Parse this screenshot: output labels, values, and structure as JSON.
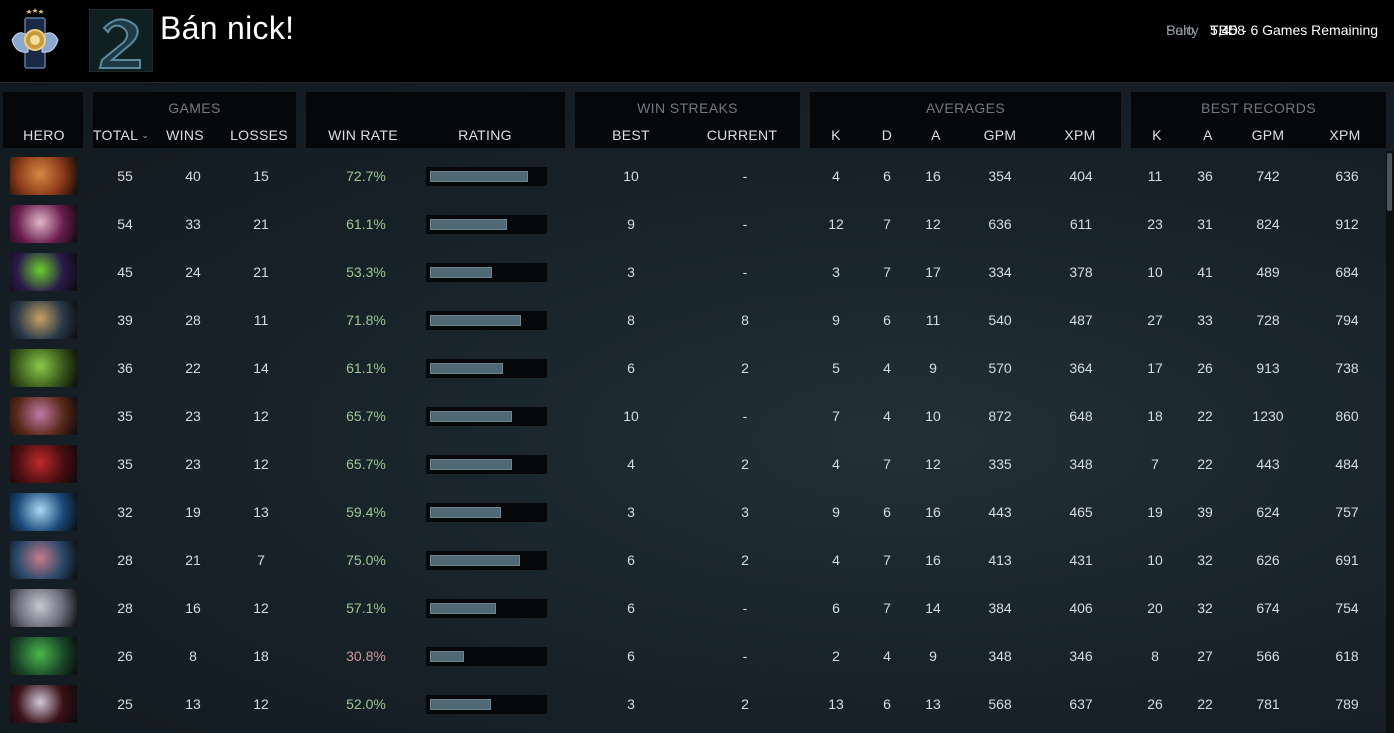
{
  "player": {
    "name": "Bán nick!",
    "mmr": [
      {
        "label": "Solo",
        "value": "5,458"
      },
      {
        "label": "Party",
        "value": "TBD - 6 Games Remaining"
      }
    ]
  },
  "table": {
    "groups": {
      "games": "GAMES",
      "win_streaks": "WIN STREAKS",
      "averages": "AVERAGES",
      "best_records": "BEST RECORDS"
    },
    "columns": {
      "hero": "HERO",
      "total": "TOTAL",
      "wins": "WINS",
      "losses": "LOSSES",
      "win_rate": "WIN RATE",
      "rating": "RATING",
      "best": "BEST",
      "current": "CURRENT",
      "avg_k": "K",
      "avg_d": "D",
      "avg_a": "A",
      "avg_gpm": "GPM",
      "avg_xpm": "XPM",
      "rec_k": "K",
      "rec_a": "A",
      "rec_gpm": "GPM",
      "rec_xpm": "XPM"
    },
    "rows": [
      {
        "total": "55",
        "wins": "40",
        "losses": "15",
        "win_rate": "72.7%",
        "rating": 0.85,
        "best": "10",
        "current": "-",
        "k": "4",
        "d": "6",
        "a": "16",
        "gpm": "354",
        "xpm": "404",
        "rk": "11",
        "ra": "36",
        "rgpm": "742",
        "rxpm": "636",
        "hero_icon": "hero-earthshaker",
        "hero_colors": [
          "#8a3a18",
          "#d48a44"
        ]
      },
      {
        "total": "54",
        "wins": "33",
        "losses": "21",
        "win_rate": "61.1%",
        "rating": 0.66,
        "best": "9",
        "current": "-",
        "k": "12",
        "d": "7",
        "a": "12",
        "gpm": "636",
        "xpm": "611",
        "rk": "23",
        "ra": "31",
        "rgpm": "824",
        "rxpm": "912",
        "hero_icon": "hero-invoker",
        "hero_colors": [
          "#6a1d4e",
          "#e0b8c8"
        ]
      },
      {
        "total": "45",
        "wins": "24",
        "losses": "21",
        "win_rate": "53.3%",
        "rating": 0.53,
        "best": "3",
        "current": "-",
        "k": "3",
        "d": "7",
        "a": "17",
        "gpm": "334",
        "xpm": "378",
        "rk": "10",
        "ra": "41",
        "rgpm": "489",
        "rxpm": "684",
        "hero_icon": "hero-void-spirit",
        "hero_colors": [
          "#2a1b4a",
          "#6ad02a"
        ]
      },
      {
        "total": "39",
        "wins": "28",
        "losses": "11",
        "win_rate": "71.8%",
        "rating": 0.79,
        "best": "8",
        "current": "8",
        "k": "9",
        "d": "6",
        "a": "11",
        "gpm": "540",
        "xpm": "487",
        "rk": "27",
        "ra": "33",
        "rgpm": "728",
        "rxpm": "794",
        "hero_icon": "hero-tinker",
        "hero_colors": [
          "#2a3a4a",
          "#c8a060"
        ]
      },
      {
        "total": "36",
        "wins": "22",
        "losses": "14",
        "win_rate": "61.1%",
        "rating": 0.63,
        "best": "6",
        "current": "2",
        "k": "5",
        "d": "4",
        "a": "9",
        "gpm": "570",
        "xpm": "364",
        "rk": "17",
        "ra": "26",
        "rgpm": "913",
        "rxpm": "738",
        "hero_icon": "hero-windranger",
        "hero_colors": [
          "#3a5a1a",
          "#8ac84a"
        ]
      },
      {
        "total": "35",
        "wins": "23",
        "losses": "12",
        "win_rate": "65.7%",
        "rating": 0.71,
        "best": "10",
        "current": "-",
        "k": "7",
        "d": "4",
        "a": "10",
        "gpm": "872",
        "xpm": "648",
        "rk": "18",
        "ra": "22",
        "rgpm": "1230",
        "rxpm": "860",
        "hero_icon": "hero-alchemist",
        "hero_colors": [
          "#5a2a1a",
          "#c07aa8"
        ]
      },
      {
        "total": "35",
        "wins": "23",
        "losses": "12",
        "win_rate": "65.7%",
        "rating": 0.71,
        "best": "4",
        "current": "2",
        "k": "4",
        "d": "7",
        "a": "12",
        "gpm": "335",
        "xpm": "348",
        "rk": "7",
        "ra": "22",
        "rgpm": "443",
        "rxpm": "484",
        "hero_icon": "hero-shadow-demon",
        "hero_colors": [
          "#4a0e12",
          "#c02a2a"
        ]
      },
      {
        "total": "32",
        "wins": "19",
        "losses": "13",
        "win_rate": "59.4%",
        "rating": 0.61,
        "best": "3",
        "current": "3",
        "k": "9",
        "d": "6",
        "a": "16",
        "gpm": "443",
        "xpm": "465",
        "rk": "19",
        "ra": "39",
        "rgpm": "624",
        "rxpm": "757",
        "hero_icon": "hero-zeus",
        "hero_colors": [
          "#1a4a7a",
          "#a8d8f0"
        ]
      },
      {
        "total": "28",
        "wins": "21",
        "losses": "7",
        "win_rate": "75.0%",
        "rating": 0.78,
        "best": "6",
        "current": "2",
        "k": "4",
        "d": "7",
        "a": "16",
        "gpm": "413",
        "xpm": "431",
        "rk": "10",
        "ra": "32",
        "rgpm": "626",
        "rxpm": "691",
        "hero_icon": "hero-slark",
        "hero_colors": [
          "#2a4a6a",
          "#c87a8a"
        ]
      },
      {
        "total": "28",
        "wins": "16",
        "losses": "12",
        "win_rate": "57.1%",
        "rating": 0.57,
        "best": "6",
        "current": "-",
        "k": "6",
        "d": "7",
        "a": "14",
        "gpm": "384",
        "xpm": "406",
        "rk": "20",
        "ra": "32",
        "rgpm": "674",
        "rxpm": "754",
        "hero_icon": "hero-tusk",
        "hero_colors": [
          "#6a6a7a",
          "#c8c8d0"
        ]
      },
      {
        "total": "26",
        "wins": "8",
        "losses": "18",
        "win_rate": "30.8%",
        "rating": 0.28,
        "best": "6",
        "current": "-",
        "k": "2",
        "d": "4",
        "a": "9",
        "gpm": "348",
        "xpm": "346",
        "rk": "8",
        "ra": "27",
        "rgpm": "566",
        "rxpm": "618",
        "hero_icon": "hero-viper",
        "hero_colors": [
          "#1a4a2a",
          "#4ab84a"
        ]
      },
      {
        "total": "25",
        "wins": "13",
        "losses": "12",
        "win_rate": "52.0%",
        "rating": 0.52,
        "best": "3",
        "current": "2",
        "k": "13",
        "d": "6",
        "a": "13",
        "gpm": "568",
        "xpm": "637",
        "rk": "26",
        "ra": "22",
        "rgpm": "781",
        "rxpm": "789",
        "hero_icon": "hero-queen-of-pain",
        "hero_colors": [
          "#3a1018",
          "#d0c8d8"
        ]
      }
    ]
  },
  "colors": {
    "win_rate_good": "#9cc98f",
    "win_rate_bad": "#d29a9a",
    "rating_bar": "#4f6874"
  }
}
